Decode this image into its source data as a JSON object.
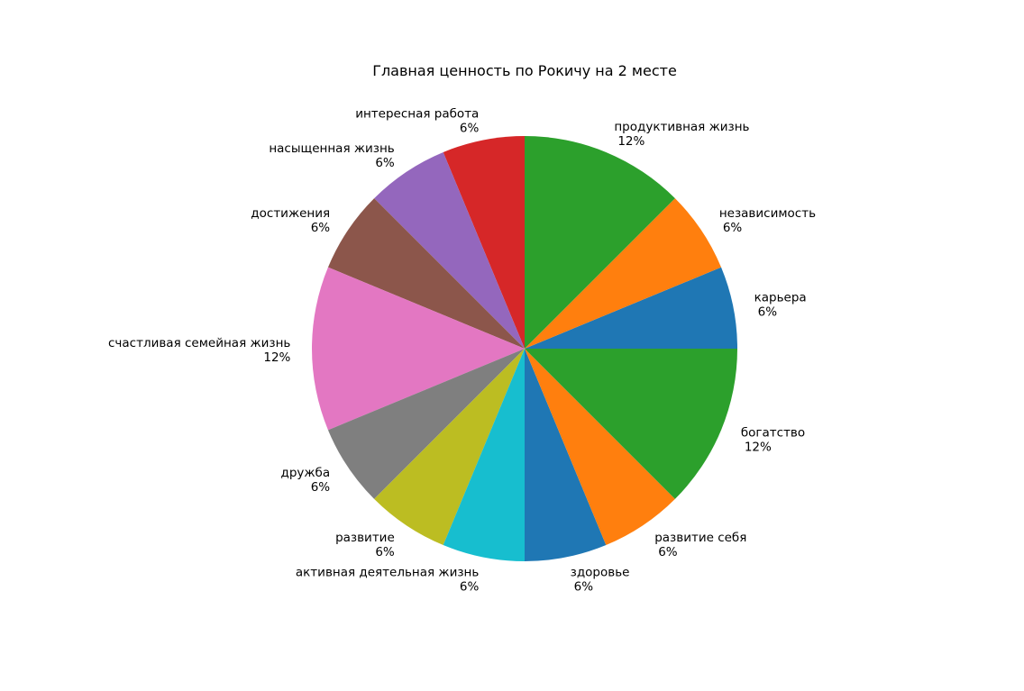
{
  "chart_data": {
    "type": "pie",
    "title": "Главная ценность по Рокичу на 2 месте",
    "slices": [
      {
        "label": "карьера",
        "value": 1,
        "percent_label": "6%",
        "color": "#1f77b4"
      },
      {
        "label": "независимость",
        "value": 1,
        "percent_label": "6%",
        "color": "#ff7f0e"
      },
      {
        "label": "продуктивная жизнь",
        "value": 2,
        "percent_label": "12%",
        "color": "#2ca02c"
      },
      {
        "label": "интересная работа",
        "value": 1,
        "percent_label": "6%",
        "color": "#d62728"
      },
      {
        "label": "насыщенная жизнь",
        "value": 1,
        "percent_label": "6%",
        "color": "#9467bd"
      },
      {
        "label": "достижения",
        "value": 1,
        "percent_label": "6%",
        "color": "#8c564b"
      },
      {
        "label": "счастливая семейная жизнь",
        "value": 2,
        "percent_label": "12%",
        "color": "#e377c2"
      },
      {
        "label": "дружба",
        "value": 1,
        "percent_label": "6%",
        "color": "#7f7f7f"
      },
      {
        "label": "развитие",
        "value": 1,
        "percent_label": "6%",
        "color": "#bcbd22"
      },
      {
        "label": "активная деятельная жизнь",
        "value": 1,
        "percent_label": "6%",
        "color": "#17becf"
      },
      {
        "label": "здоровье",
        "value": 1,
        "percent_label": "6%",
        "color": "#1f77b4"
      },
      {
        "label": "развитие себя",
        "value": 1,
        "percent_label": "6%",
        "color": "#ff7f0e"
      },
      {
        "label": "богатство",
        "value": 2,
        "percent_label": "12%",
        "color": "#2ca02c"
      }
    ]
  }
}
